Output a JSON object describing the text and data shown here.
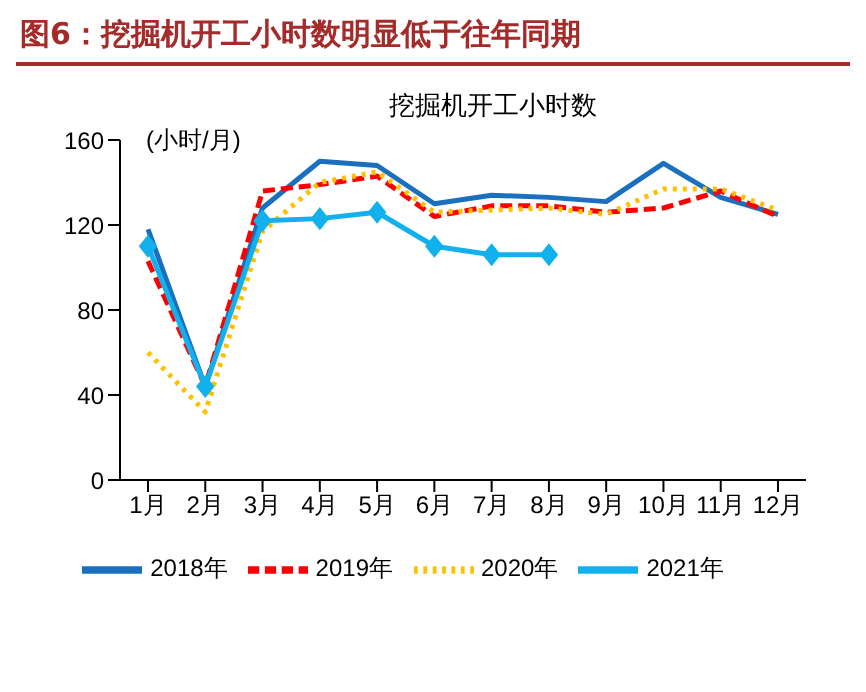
{
  "chart_data": {
    "type": "line",
    "title": "图6：挖掘机开工小时数明显低于往年同期",
    "subtitle": "挖掘机开工小时数",
    "ylabel": "(小时/月)",
    "categories": [
      "1月",
      "2月",
      "3月",
      "4月",
      "5月",
      "6月",
      "7月",
      "8月",
      "9月",
      "10月",
      "11月",
      "12月"
    ],
    "ylim": [
      0,
      160
    ],
    "yticks": [
      0,
      40,
      80,
      120,
      160
    ],
    "grid": false,
    "legend": "bottom",
    "series": [
      {
        "name": "2018年",
        "color": "#1a6fbf",
        "line_style": "solid",
        "marker": "none",
        "values": [
          118,
          44,
          128,
          150,
          148,
          130,
          134,
          133,
          131,
          149,
          133,
          125
        ]
      },
      {
        "name": "2019年",
        "color": "#ff0000",
        "line_style": "dashed",
        "marker": "none",
        "values": [
          103,
          44,
          136,
          139,
          143,
          124,
          129,
          129,
          126,
          128,
          136,
          124
        ]
      },
      {
        "name": "2020年",
        "color": "#ffc000",
        "line_style": "dotted",
        "marker": "none",
        "values": [
          60,
          32,
          117,
          140,
          145,
          126,
          127,
          128,
          125,
          137,
          137,
          127
        ]
      },
      {
        "name": "2021年",
        "color": "#12b0ec",
        "line_style": "solid",
        "marker": "diamond",
        "values": [
          110,
          44,
          122,
          123,
          126,
          110,
          106,
          106,
          null,
          null,
          null,
          null
        ]
      }
    ]
  }
}
